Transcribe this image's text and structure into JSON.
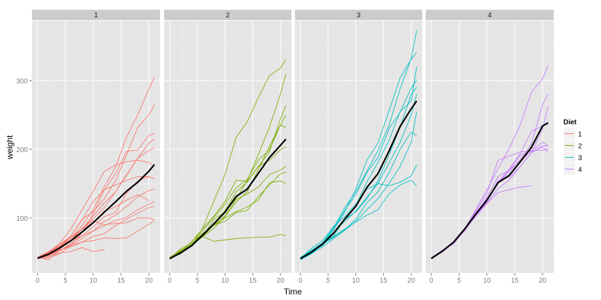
{
  "chart_data": {
    "type": "line",
    "xlabel": "Time",
    "ylabel": "weight",
    "xlim": [
      -1,
      22
    ],
    "ylim": [
      20,
      387
    ],
    "x_ticks": [
      0,
      5,
      10,
      15,
      20
    ],
    "y_ticks": [
      100,
      200,
      300
    ],
    "grid": true,
    "legend": {
      "title": "Diet",
      "position": "right",
      "entries": [
        "1",
        "2",
        "3",
        "4"
      ]
    },
    "colors": {
      "1": "#F8766D",
      "2": "#7CAE00",
      "3": "#00BFC4",
      "4": "#C77CFF",
      "mean": "#000000"
    },
    "times": [
      0,
      2,
      4,
      6,
      8,
      10,
      12,
      14,
      16,
      18,
      20,
      21
    ],
    "facets": [
      {
        "label": "1",
        "mean": [
          41.4,
          47.3,
          56.5,
          66.8,
          79.7,
          93.1,
          108.5,
          123.4,
          139,
          152,
          168,
          177.8
        ],
        "chicks": [
          [
            41,
            49,
            59,
            74,
            97,
            124,
            141,
            148,
            155,
            160,
            160,
            157
          ],
          [
            40,
            49,
            58,
            72,
            84,
            103,
            122,
            138,
            162,
            187,
            209,
            215
          ],
          [
            43,
            39,
            55,
            67,
            84,
            99,
            115,
            138,
            163,
            187,
            198,
            202
          ],
          [
            42,
            49,
            56,
            67,
            74,
            87,
            102,
            108,
            136,
            154,
            160,
            157
          ],
          [
            41,
            42,
            48,
            60,
            79,
            106,
            141,
            164,
            197,
            199,
            220,
            223
          ],
          [
            41,
            47,
            54,
            58,
            65,
            73,
            77,
            89,
            98,
            107,
            115,
            117
          ],
          [
            41,
            49,
            57,
            71,
            89,
            112,
            146,
            174,
            218,
            250,
            288,
            305
          ],
          [
            42,
            50,
            61,
            71,
            84,
            93,
            110,
            116,
            126,
            134,
            125,
            null
          ],
          [
            42,
            51,
            59,
            68,
            85,
            96,
            90,
            92,
            93,
            100,
            100,
            98
          ],
          [
            41,
            44,
            52,
            63,
            74,
            81,
            89,
            96,
            101,
            112,
            120,
            124
          ],
          [
            43,
            51,
            63,
            84,
            112,
            139,
            168,
            177,
            182,
            184,
            181,
            175
          ],
          [
            41,
            48,
            53,
            60,
            65,
            67,
            71,
            70,
            71,
            81,
            91,
            96
          ],
          [
            41,
            45,
            49,
            51,
            57,
            51,
            54,
            null,
            null,
            null,
            null,
            null
          ],
          [
            41,
            49,
            61,
            74,
            98,
            109,
            128,
            154,
            192,
            232,
            250,
            265
          ],
          [
            42,
            46,
            53,
            61,
            70,
            81,
            95,
            104,
            117,
            131,
            140,
            142
          ]
        ]
      },
      {
        "label": "2",
        "mean": [
          40.7,
          49.4,
          59.8,
          75.4,
          91.7,
          108.5,
          131.3,
          141.9,
          164.7,
          187.7,
          205.6,
          214.7
        ],
        "chicks": [
          [
            40,
            50,
            62,
            86,
            125,
            163,
            217,
            240,
            275,
            307,
            318,
            331
          ],
          [
            41,
            55,
            64,
            77,
            90,
            95,
            108,
            111,
            131,
            148,
            164,
            167
          ],
          [
            43,
            52,
            61,
            73,
            90,
            103,
            127,
            135,
            145,
            163,
            170,
            175
          ],
          [
            41,
            49,
            61,
            74,
            98,
            109,
            128,
            154,
            192,
            232,
            280,
            309
          ],
          [
            40,
            52,
            62,
            82,
            101,
            120,
            144,
            156,
            184,
            199,
            235,
            250
          ],
          [
            41,
            48,
            60,
            76,
            92,
            111,
            138,
            152,
            175,
            196,
            244,
            264
          ],
          [
            42,
            51,
            66,
            85,
            103,
            124,
            155,
            153,
            175,
            184,
            199,
            204
          ],
          [
            40,
            50,
            61,
            78,
            89,
            100,
            109,
            116,
            126,
            151,
            154,
            150
          ],
          [
            42,
            53,
            62,
            73,
            85,
            102,
            123,
            138,
            170,
            204,
            235,
            232
          ],
          [
            42,
            52,
            62,
            73,
            66,
            68,
            70,
            71,
            72,
            72,
            76,
            74
          ]
        ]
      },
      {
        "label": "3",
        "mean": [
          40.8,
          50.4,
          62.2,
          77.9,
          98.4,
          117.1,
          144.4,
          164.5,
          197.4,
          233.1,
          258.9,
          270.3
        ],
        "chicks": [
          [
            41,
            53,
            62,
            73,
            84,
            94,
            104,
            112,
            135,
            148,
            155,
            147
          ],
          [
            41,
            56,
            67,
            88,
            102,
            120,
            142,
            150,
            147,
            152,
            161,
            177
          ],
          [
            42,
            53,
            64,
            86,
            115,
            138,
            168,
            198,
            235,
            288,
            332,
            373
          ],
          [
            42,
            50,
            61,
            83,
            109,
            142,
            184,
            209,
            256,
            304,
            331,
            341
          ],
          [
            39,
            48,
            63,
            84,
            111,
            134,
            166,
            188,
            230,
            254,
            289,
            301
          ],
          [
            41,
            49,
            61,
            74,
            98,
            109,
            128,
            154,
            192,
            232,
            280,
            290
          ],
          [
            42,
            51,
            62,
            72,
            83,
            98,
            122,
            138,
            166,
            200,
            225,
            220
          ],
          [
            40,
            50,
            60,
            77,
            98,
            118,
            152,
            181,
            213,
            255,
            270,
            320
          ],
          [
            43,
            52,
            63,
            79,
            95,
            110,
            130,
            150,
            180,
            210,
            250,
            280
          ],
          [
            41,
            48,
            58,
            70,
            82,
            95,
            112,
            128,
            150,
            175,
            210,
            255
          ]
        ]
      },
      {
        "label": "4",
        "mean": [
          41.0,
          51.8,
          64.5,
          83.9,
          105.6,
          126.0,
          151.4,
          161.8,
          182.0,
          202.9,
          233.9,
          238.6
        ],
        "chicks": [
          [
            42,
            51,
            65,
            84,
            112,
            141,
            172,
            201,
            236,
            283,
            303,
            322
          ],
          [
            42,
            52,
            66,
            85,
            104,
            126,
            151,
            170,
            183,
            197,
            203,
            197
          ],
          [
            42,
            51,
            64,
            82,
            110,
            136,
            184,
            190,
            196,
            198,
            199,
            200
          ],
          [
            41,
            53,
            65,
            85,
            108,
            128,
            152,
            171,
            194,
            226,
            234,
            237
          ],
          [
            41,
            51,
            65,
            81,
            104,
            124,
            155,
            159,
            175,
            195,
            205,
            205
          ],
          [
            42,
            50,
            64,
            84,
            104,
            122,
            143,
            155,
            175,
            195,
            230,
            263
          ],
          [
            40,
            51,
            66,
            84,
            102,
            121,
            137,
            141,
            145,
            147,
            null,
            null
          ],
          [
            41,
            52,
            66,
            85,
            106,
            127,
            151,
            167,
            185,
            208,
            265,
            281
          ],
          [
            42,
            53,
            62,
            83,
            105,
            130,
            160,
            170,
            191,
            198,
            210,
            205
          ]
        ]
      }
    ]
  }
}
